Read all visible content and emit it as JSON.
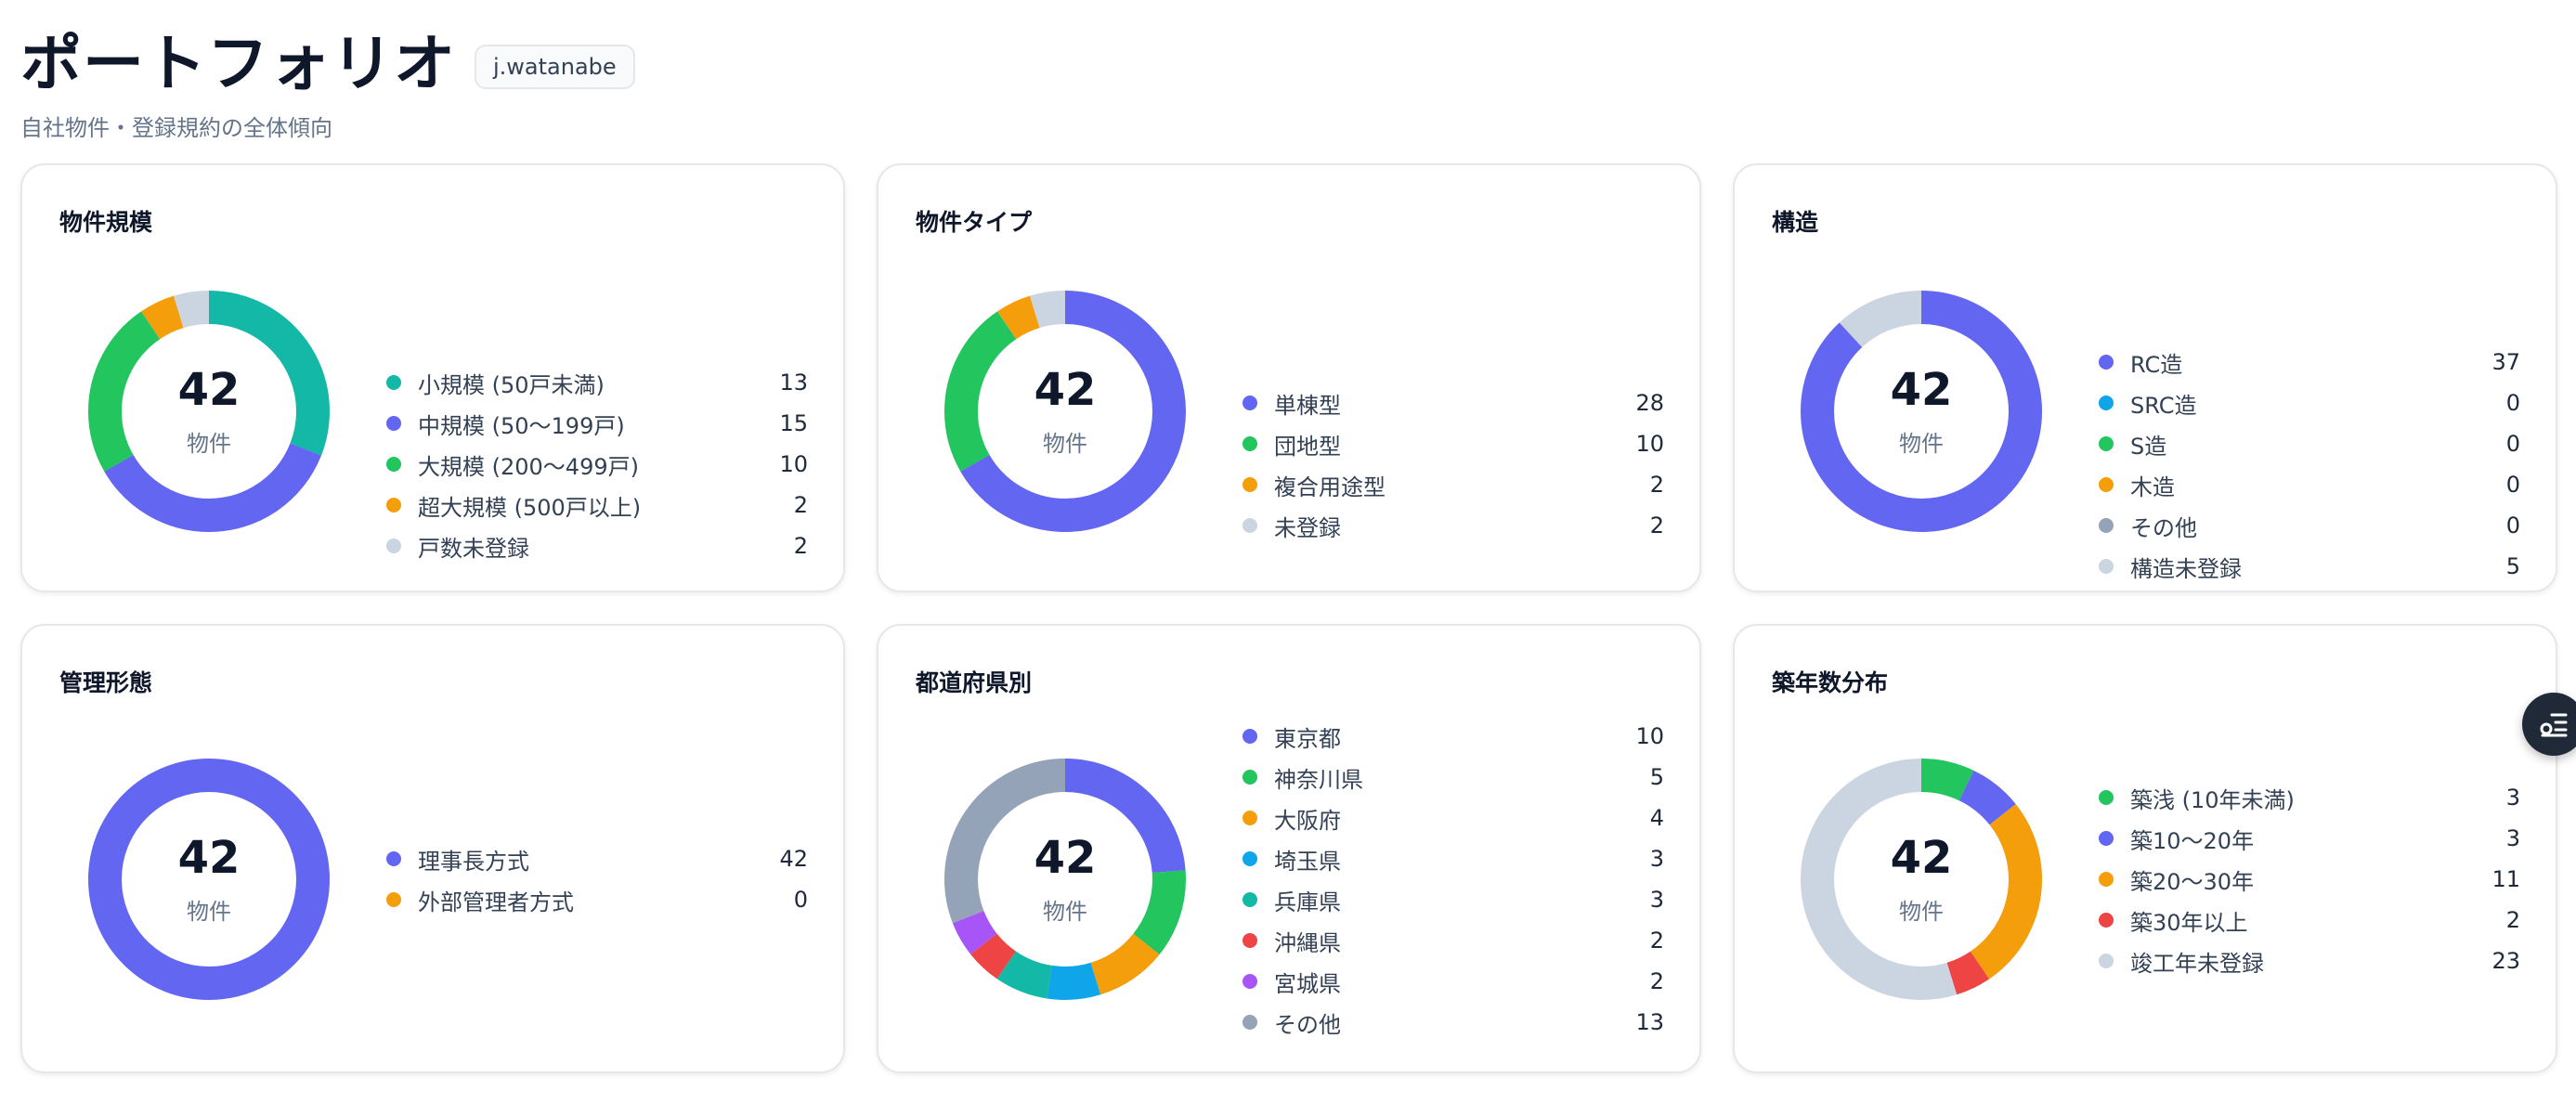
{
  "header": {
    "title": "ポートフォリオ",
    "user": "j.watanabe",
    "subtitle": "自社物件・登録規約の全体傾向"
  },
  "colors": {
    "indigo": "#6366f1",
    "teal": "#14b8a6",
    "green": "#22c55e",
    "amber": "#f59e0b",
    "gray": "#cbd5e1",
    "sky": "#0ea5e9",
    "slate": "#94a3b8",
    "red": "#ef4444",
    "purple": "#a855f7"
  },
  "cards": [
    {
      "title": "物件規模",
      "total": "42",
      "unit": "物件",
      "items": [
        {
          "label": "小規模 (50戸未満)",
          "value": 13,
          "color": "#14b8a6"
        },
        {
          "label": "中規模 (50〜199戸)",
          "value": 15,
          "color": "#6366f1"
        },
        {
          "label": "大規模 (200〜499戸)",
          "value": 10,
          "color": "#22c55e"
        },
        {
          "label": "超大規模 (500戸以上)",
          "value": 2,
          "color": "#f59e0b"
        },
        {
          "label": "戸数未登録",
          "value": 2,
          "color": "#cbd5e1"
        }
      ]
    },
    {
      "title": "物件タイプ",
      "total": "42",
      "unit": "物件",
      "items": [
        {
          "label": "単棟型",
          "value": 28,
          "color": "#6366f1"
        },
        {
          "label": "団地型",
          "value": 10,
          "color": "#22c55e"
        },
        {
          "label": "複合用途型",
          "value": 2,
          "color": "#f59e0b"
        },
        {
          "label": "未登録",
          "value": 2,
          "color": "#cbd5e1"
        }
      ]
    },
    {
      "title": "構造",
      "total": "42",
      "unit": "物件",
      "items": [
        {
          "label": "RC造",
          "value": 37,
          "color": "#6366f1"
        },
        {
          "label": "SRC造",
          "value": 0,
          "color": "#0ea5e9"
        },
        {
          "label": "S造",
          "value": 0,
          "color": "#22c55e"
        },
        {
          "label": "木造",
          "value": 0,
          "color": "#f59e0b"
        },
        {
          "label": "その他",
          "value": 0,
          "color": "#94a3b8"
        },
        {
          "label": "構造未登録",
          "value": 5,
          "color": "#cbd5e1"
        }
      ]
    },
    {
      "title": "管理形態",
      "total": "42",
      "unit": "物件",
      "items": [
        {
          "label": "理事長方式",
          "value": 42,
          "color": "#6366f1"
        },
        {
          "label": "外部管理者方式",
          "value": 0,
          "color": "#f59e0b"
        }
      ]
    },
    {
      "title": "都道府県別",
      "total": "42",
      "unit": "物件",
      "items": [
        {
          "label": "東京都",
          "value": 10,
          "color": "#6366f1"
        },
        {
          "label": "神奈川県",
          "value": 5,
          "color": "#22c55e"
        },
        {
          "label": "大阪府",
          "value": 4,
          "color": "#f59e0b"
        },
        {
          "label": "埼玉県",
          "value": 3,
          "color": "#0ea5e9"
        },
        {
          "label": "兵庫県",
          "value": 3,
          "color": "#14b8a6"
        },
        {
          "label": "沖縄県",
          "value": 2,
          "color": "#ef4444"
        },
        {
          "label": "宮城県",
          "value": 2,
          "color": "#a855f7"
        },
        {
          "label": "その他",
          "value": 13,
          "color": "#94a3b8"
        }
      ]
    },
    {
      "title": "築年数分布",
      "total": "42",
      "unit": "物件",
      "items": [
        {
          "label": "築浅 (10年未満)",
          "value": 3,
          "color": "#22c55e"
        },
        {
          "label": "築10〜20年",
          "value": 3,
          "color": "#6366f1"
        },
        {
          "label": "築20〜30年",
          "value": 11,
          "color": "#f59e0b"
        },
        {
          "label": "築30年以上",
          "value": 2,
          "color": "#ef4444"
        },
        {
          "label": "竣工年未登録",
          "value": 23,
          "color": "#cbd5e1"
        }
      ]
    }
  ],
  "float_button": {
    "icon": "list-settings-icon"
  }
}
